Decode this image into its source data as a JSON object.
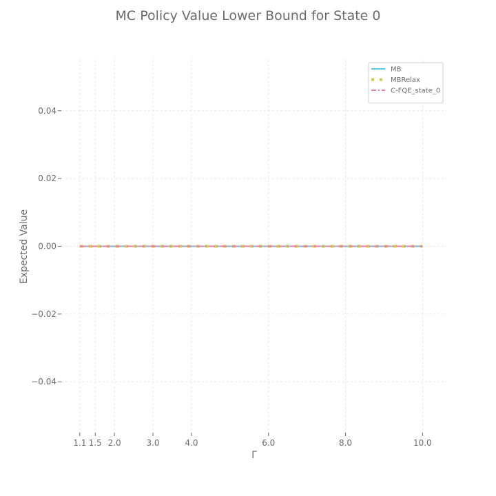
{
  "chart_data": {
    "type": "line",
    "title": "MC Policy Value Lower Bound for State 0",
    "xlabel": "Γ",
    "ylabel": "Expected Value",
    "xlim": [
      0.62,
      10.62
    ],
    "ylim": [
      -0.055,
      0.055
    ],
    "xticks": [
      1.1,
      1.5,
      2.0,
      3.0,
      4.0,
      6.0,
      8.0,
      10.0
    ],
    "xtick_labels": [
      "1.1",
      "1.5",
      "2.0",
      "3.0",
      "4.0",
      "6.0",
      "8.0",
      "10.0"
    ],
    "yticks": [
      -0.04,
      -0.02,
      0.0,
      0.02,
      0.04
    ],
    "ytick_labels": [
      "−0.04",
      "−0.02",
      "0.00",
      "0.02",
      "0.04"
    ],
    "grid": true,
    "legend_position": "top-right",
    "x": [
      1.1,
      1.5,
      2.0,
      3.0,
      4.0,
      6.0,
      8.0,
      10.0
    ],
    "series": [
      {
        "name": "MB",
        "values": [
          0,
          0,
          0,
          0,
          0,
          0,
          0,
          0
        ],
        "color": "#5bc8e8",
        "style": "solid"
      },
      {
        "name": "MBRelax",
        "values": [
          0,
          0,
          0,
          0,
          0,
          0,
          0,
          0
        ],
        "color": "#d4cc4a",
        "style": "dotted"
      },
      {
        "name": "C-FQE_state_0",
        "values": [
          0,
          0,
          0,
          0,
          0,
          0,
          0,
          0
        ],
        "color": "#e77aa6",
        "style": "dashdot"
      }
    ]
  }
}
